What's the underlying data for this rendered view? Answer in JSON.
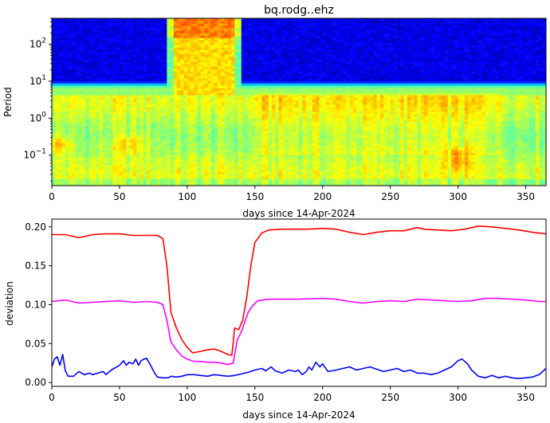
{
  "chart_data": [
    {
      "type": "heatmap",
      "title": "bq.rodg..ehz",
      "xlabel": "days since 14-Apr-2024",
      "ylabel": "Period",
      "xlim": [
        0,
        365
      ],
      "ylim": [
        0.015,
        500
      ],
      "y_scale": "log",
      "colormap": "jet",
      "x_ticks": [
        0,
        50,
        100,
        150,
        200,
        250,
        300,
        350
      ],
      "y_ticks": [
        {
          "base": "10",
          "exp": "2",
          "value": 100
        },
        {
          "base": "10",
          "exp": "1",
          "value": 10
        },
        {
          "base": "10",
          "exp": "0",
          "value": 1
        },
        {
          "base": "10",
          "exp": "−1",
          "value": 0.1
        }
      ],
      "features": [
        {
          "region": "long periods (>~10) mostly very low (dark blue)",
          "days": [
            0,
            365
          ],
          "period": [
            10,
            500
          ],
          "level": 0.05
        },
        {
          "region": "high-energy band at long periods",
          "days": [
            85,
            140
          ],
          "period": [
            10,
            500
          ],
          "level": 0.7
        },
        {
          "region": "hot spot near 0.2 s",
          "days": [
            0,
            12
          ],
          "period": [
            0.1,
            0.4
          ],
          "level": 0.72
        },
        {
          "region": "hot spot near 0.2 s",
          "days": [
            45,
            72
          ],
          "period": [
            0.12,
            0.4
          ],
          "level": 0.7
        },
        {
          "region": "hot spot near 0.08 s",
          "days": [
            290,
            312
          ],
          "period": [
            0.04,
            0.15
          ],
          "level": 0.75
        }
      ]
    },
    {
      "type": "line",
      "xlabel": "days since 14-Apr-2024",
      "ylabel": "deviation",
      "xlim": [
        0,
        365
      ],
      "ylim": [
        -0.005,
        0.21
      ],
      "x_ticks": [
        0,
        50,
        100,
        150,
        200,
        250,
        300,
        350
      ],
      "y_ticks": [
        "0.00",
        "0.05",
        "0.10",
        "0.15",
        "0.20"
      ],
      "grid": false,
      "series": [
        {
          "color": "#ff0000",
          "points": [
            [
              0,
              0.19
            ],
            [
              10,
              0.19
            ],
            [
              20,
              0.186
            ],
            [
              30,
              0.19
            ],
            [
              40,
              0.191
            ],
            [
              50,
              0.191
            ],
            [
              60,
              0.189
            ],
            [
              70,
              0.189
            ],
            [
              78,
              0.189
            ],
            [
              82,
              0.185
            ],
            [
              85,
              0.15
            ],
            [
              88,
              0.09
            ],
            [
              92,
              0.07
            ],
            [
              96,
              0.055
            ],
            [
              100,
              0.045
            ],
            [
              104,
              0.038
            ],
            [
              110,
              0.04
            ],
            [
              115,
              0.042
            ],
            [
              120,
              0.043
            ],
            [
              125,
              0.04
            ],
            [
              130,
              0.036
            ],
            [
              133,
              0.035
            ],
            [
              135,
              0.07
            ],
            [
              138,
              0.068
            ],
            [
              141,
              0.08
            ],
            [
              144,
              0.11
            ],
            [
              147,
              0.15
            ],
            [
              150,
              0.18
            ],
            [
              155,
              0.192
            ],
            [
              160,
              0.196
            ],
            [
              170,
              0.197
            ],
            [
              180,
              0.197
            ],
            [
              190,
              0.197
            ],
            [
              200,
              0.198
            ],
            [
              210,
              0.197
            ],
            [
              220,
              0.193
            ],
            [
              230,
              0.19
            ],
            [
              240,
              0.193
            ],
            [
              250,
              0.195
            ],
            [
              260,
              0.195
            ],
            [
              270,
              0.199
            ],
            [
              275,
              0.197
            ],
            [
              285,
              0.196
            ],
            [
              295,
              0.195
            ],
            [
              305,
              0.197
            ],
            [
              315,
              0.201
            ],
            [
              325,
              0.2
            ],
            [
              335,
              0.198
            ],
            [
              345,
              0.196
            ],
            [
              355,
              0.193
            ],
            [
              365,
              0.191
            ]
          ]
        },
        {
          "color": "#ff00ff",
          "points": [
            [
              0,
              0.104
            ],
            [
              10,
              0.106
            ],
            [
              20,
              0.102
            ],
            [
              30,
              0.103
            ],
            [
              40,
              0.104
            ],
            [
              50,
              0.105
            ],
            [
              60,
              0.103
            ],
            [
              70,
              0.104
            ],
            [
              78,
              0.103
            ],
            [
              82,
              0.1
            ],
            [
              85,
              0.08
            ],
            [
              88,
              0.052
            ],
            [
              92,
              0.042
            ],
            [
              96,
              0.034
            ],
            [
              100,
              0.03
            ],
            [
              105,
              0.027
            ],
            [
              110,
              0.027
            ],
            [
              115,
              0.026
            ],
            [
              120,
              0.026
            ],
            [
              125,
              0.025
            ],
            [
              130,
              0.023
            ],
            [
              134,
              0.025
            ],
            [
              137,
              0.055
            ],
            [
              140,
              0.065
            ],
            [
              145,
              0.09
            ],
            [
              148,
              0.098
            ],
            [
              152,
              0.105
            ],
            [
              160,
              0.107
            ],
            [
              180,
              0.107
            ],
            [
              200,
              0.108
            ],
            [
              210,
              0.107
            ],
            [
              220,
              0.104
            ],
            [
              230,
              0.102
            ],
            [
              240,
              0.104
            ],
            [
              250,
              0.105
            ],
            [
              260,
              0.104
            ],
            [
              270,
              0.107
            ],
            [
              280,
              0.106
            ],
            [
              290,
              0.105
            ],
            [
              300,
              0.104
            ],
            [
              310,
              0.105
            ],
            [
              320,
              0.108
            ],
            [
              330,
              0.108
            ],
            [
              340,
              0.107
            ],
            [
              350,
              0.106
            ],
            [
              360,
              0.104
            ],
            [
              365,
              0.104
            ]
          ]
        },
        {
          "color": "#0000ff",
          "points": [
            [
              0,
              0.02
            ],
            [
              2,
              0.03
            ],
            [
              4,
              0.033
            ],
            [
              6,
              0.022
            ],
            [
              8,
              0.036
            ],
            [
              10,
              0.015
            ],
            [
              12,
              0.008
            ],
            [
              16,
              0.008
            ],
            [
              20,
              0.014
            ],
            [
              24,
              0.01
            ],
            [
              28,
              0.012
            ],
            [
              30,
              0.01
            ],
            [
              34,
              0.012
            ],
            [
              38,
              0.014
            ],
            [
              40,
              0.01
            ],
            [
              44,
              0.016
            ],
            [
              48,
              0.02
            ],
            [
              50,
              0.022
            ],
            [
              53,
              0.028
            ],
            [
              55,
              0.022
            ],
            [
              57,
              0.026
            ],
            [
              60,
              0.024
            ],
            [
              62,
              0.03
            ],
            [
              64,
              0.022
            ],
            [
              66,
              0.028
            ],
            [
              68,
              0.03
            ],
            [
              70,
              0.031
            ],
            [
              73,
              0.022
            ],
            [
              76,
              0.012
            ],
            [
              78,
              0.007
            ],
            [
              82,
              0.006
            ],
            [
              86,
              0.006
            ],
            [
              88,
              0.008
            ],
            [
              92,
              0.007
            ],
            [
              96,
              0.008
            ],
            [
              100,
              0.01
            ],
            [
              105,
              0.01
            ],
            [
              110,
              0.009
            ],
            [
              115,
              0.008
            ],
            [
              120,
              0.01
            ],
            [
              125,
              0.009
            ],
            [
              130,
              0.008
            ],
            [
              135,
              0.009
            ],
            [
              140,
              0.011
            ],
            [
              145,
              0.013
            ],
            [
              150,
              0.016
            ],
            [
              155,
              0.018
            ],
            [
              158,
              0.015
            ],
            [
              162,
              0.02
            ],
            [
              165,
              0.015
            ],
            [
              170,
              0.012
            ],
            [
              175,
              0.016
            ],
            [
              180,
              0.014
            ],
            [
              182,
              0.016
            ],
            [
              185,
              0.01
            ],
            [
              188,
              0.014
            ],
            [
              190,
              0.02
            ],
            [
              192,
              0.016
            ],
            [
              195,
              0.026
            ],
            [
              198,
              0.02
            ],
            [
              200,
              0.024
            ],
            [
              204,
              0.014
            ],
            [
              210,
              0.016
            ],
            [
              215,
              0.018
            ],
            [
              220,
              0.02
            ],
            [
              225,
              0.016
            ],
            [
              230,
              0.018
            ],
            [
              235,
              0.02
            ],
            [
              240,
              0.017
            ],
            [
              245,
              0.014
            ],
            [
              250,
              0.016
            ],
            [
              255,
              0.018
            ],
            [
              260,
              0.014
            ],
            [
              265,
              0.016
            ],
            [
              270,
              0.012
            ],
            [
              275,
              0.012
            ],
            [
              280,
              0.01
            ],
            [
              285,
              0.012
            ],
            [
              290,
              0.016
            ],
            [
              295,
              0.02
            ],
            [
              300,
              0.028
            ],
            [
              303,
              0.03
            ],
            [
              307,
              0.024
            ],
            [
              310,
              0.016
            ],
            [
              315,
              0.008
            ],
            [
              320,
              0.006
            ],
            [
              325,
              0.009
            ],
            [
              330,
              0.006
            ],
            [
              335,
              0.008
            ],
            [
              340,
              0.006
            ],
            [
              345,
              0.005
            ],
            [
              350,
              0.006
            ],
            [
              355,
              0.007
            ],
            [
              360,
              0.01
            ],
            [
              365,
              0.018
            ]
          ]
        }
      ]
    }
  ]
}
